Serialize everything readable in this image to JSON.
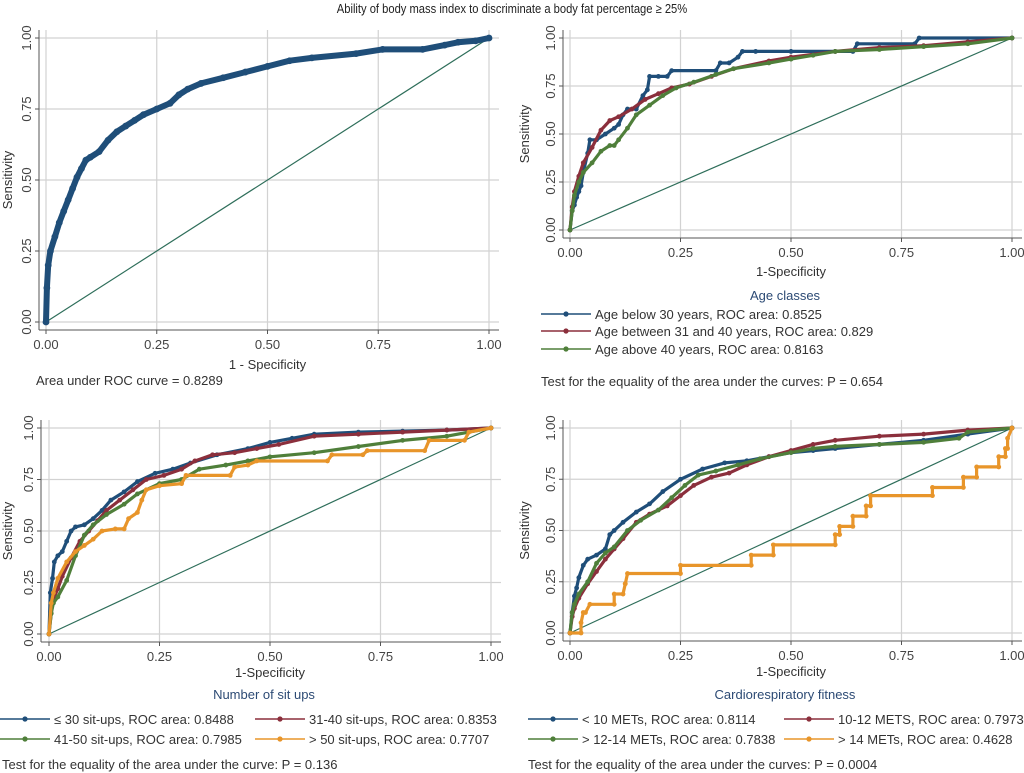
{
  "title": "Ability of body mass index to discriminate a body fat percentage ≥ 25%",
  "colors": {
    "navy": "#1f4e79",
    "maroon": "#8b2f3c",
    "green": "#4f7f3a",
    "orange": "#e8952a",
    "reference": "#2e6e5a",
    "grid": "#d2d2d2",
    "axis": "#555555"
  },
  "chart_data": [
    {
      "type": "line",
      "panel": "top-left",
      "title": "",
      "xlabel": "1 - Specificity",
      "ylabel": "Sensitivity",
      "xlim": [
        0,
        1
      ],
      "ylim": [
        0,
        1
      ],
      "xticks": [
        "0.00",
        "0.25",
        "0.50",
        "0.75",
        "1.00"
      ],
      "yticks": [
        "0.00",
        "0.25",
        "0.50",
        "0.75",
        "1.00"
      ],
      "grid": true,
      "note": "Area under ROC curve = 0.8289",
      "reference_line": true,
      "series": [
        {
          "name": "BMI",
          "color": "navy",
          "thick": true,
          "x": [
            0,
            0.002,
            0.005,
            0.01,
            0.02,
            0.03,
            0.04,
            0.05,
            0.06,
            0.07,
            0.08,
            0.09,
            0.1,
            0.12,
            0.14,
            0.16,
            0.18,
            0.2,
            0.22,
            0.25,
            0.28,
            0.3,
            0.32,
            0.35,
            0.4,
            0.45,
            0.5,
            0.55,
            0.6,
            0.7,
            0.76,
            0.85,
            0.9,
            0.93,
            0.97,
            1.0
          ],
          "y": [
            0,
            0.12,
            0.2,
            0.25,
            0.3,
            0.35,
            0.39,
            0.43,
            0.47,
            0.51,
            0.54,
            0.57,
            0.58,
            0.6,
            0.64,
            0.67,
            0.69,
            0.71,
            0.73,
            0.75,
            0.77,
            0.8,
            0.82,
            0.84,
            0.86,
            0.88,
            0.9,
            0.92,
            0.93,
            0.945,
            0.96,
            0.96,
            0.975,
            0.985,
            0.99,
            1.0
          ]
        }
      ]
    },
    {
      "type": "line",
      "panel": "top-right",
      "xlabel": "1-Specificity",
      "ylabel": "Sensitivity",
      "xlim": [
        0,
        1
      ],
      "ylim": [
        0,
        1
      ],
      "xticks": [
        "0.00",
        "0.25",
        "0.50",
        "0.75",
        "1.00"
      ],
      "yticks": [
        "0.00",
        "0.25",
        "0.50",
        "0.75",
        "1.00"
      ],
      "grid": true,
      "legend_title": "Age classes",
      "note": "Test for the equality of the area under the curves: P = 0.654",
      "reference_line": true,
      "series": [
        {
          "name": "Age below 30 years, ROC area: 0.8525",
          "color": "navy",
          "x": [
            0,
            0.005,
            0.01,
            0.015,
            0.02,
            0.025,
            0.03,
            0.04,
            0.045,
            0.06,
            0.08,
            0.1,
            0.11,
            0.12,
            0.13,
            0.15,
            0.165,
            0.175,
            0.18,
            0.2,
            0.22,
            0.23,
            0.33,
            0.34,
            0.36,
            0.38,
            0.39,
            0.42,
            0.5,
            0.6,
            0.64,
            0.65,
            0.78,
            0.79,
            1.0
          ],
          "y": [
            0,
            0.1,
            0.13,
            0.17,
            0.2,
            0.23,
            0.3,
            0.4,
            0.47,
            0.47,
            0.5,
            0.53,
            0.55,
            0.6,
            0.63,
            0.63,
            0.7,
            0.73,
            0.8,
            0.8,
            0.8,
            0.83,
            0.83,
            0.87,
            0.87,
            0.9,
            0.93,
            0.93,
            0.93,
            0.93,
            0.93,
            0.97,
            0.97,
            1.0,
            1.0
          ]
        },
        {
          "name": "Age between 31 and 40 years, ROC area: 0.829",
          "color": "maroon",
          "x": [
            0,
            0.005,
            0.01,
            0.02,
            0.03,
            0.05,
            0.07,
            0.09,
            0.11,
            0.14,
            0.17,
            0.2,
            0.23,
            0.27,
            0.32,
            0.37,
            0.45,
            0.5,
            0.6,
            0.7,
            0.8,
            0.9,
            1.0
          ],
          "y": [
            0,
            0.12,
            0.2,
            0.28,
            0.35,
            0.43,
            0.52,
            0.57,
            0.59,
            0.63,
            0.68,
            0.71,
            0.74,
            0.76,
            0.8,
            0.84,
            0.88,
            0.9,
            0.93,
            0.95,
            0.96,
            0.98,
            1.0
          ]
        },
        {
          "name": "Age above 40 years, ROC area: 0.8163",
          "color": "green",
          "x": [
            0,
            0.005,
            0.01,
            0.02,
            0.03,
            0.05,
            0.07,
            0.09,
            0.1,
            0.11,
            0.13,
            0.15,
            0.18,
            0.21,
            0.24,
            0.28,
            0.33,
            0.37,
            0.45,
            0.5,
            0.55,
            0.6,
            0.7,
            0.8,
            0.9,
            1.0
          ],
          "y": [
            0,
            0.1,
            0.18,
            0.25,
            0.3,
            0.35,
            0.41,
            0.44,
            0.44,
            0.47,
            0.53,
            0.6,
            0.65,
            0.7,
            0.74,
            0.77,
            0.81,
            0.84,
            0.87,
            0.89,
            0.91,
            0.93,
            0.94,
            0.955,
            0.97,
            1.0
          ]
        }
      ]
    },
    {
      "type": "line",
      "panel": "bottom-left",
      "xlabel": "1-Specificity",
      "ylabel": "Sensitivity",
      "xlim": [
        0,
        1
      ],
      "ylim": [
        0,
        1
      ],
      "xticks": [
        "0.00",
        "0.25",
        "0.50",
        "0.75",
        "1.00"
      ],
      "yticks": [
        "0.00",
        "0.25",
        "0.50",
        "0.75",
        "1.00"
      ],
      "grid": true,
      "legend_title": "Number of sit ups",
      "note": "Test for the equality of the area under the curve: P = 0.136",
      "reference_line": true,
      "series": [
        {
          "name": "≤ 30 sit-ups, ROC area: 0.8488",
          "color": "navy",
          "x": [
            0,
            0.003,
            0.008,
            0.012,
            0.02,
            0.03,
            0.04,
            0.05,
            0.06,
            0.08,
            0.1,
            0.12,
            0.14,
            0.17,
            0.2,
            0.24,
            0.28,
            0.32,
            0.38,
            0.45,
            0.5,
            0.55,
            0.6,
            0.7,
            0.8,
            0.9,
            1.0
          ],
          "y": [
            0,
            0.2,
            0.27,
            0.35,
            0.38,
            0.4,
            0.45,
            0.5,
            0.52,
            0.53,
            0.56,
            0.6,
            0.65,
            0.69,
            0.74,
            0.78,
            0.8,
            0.83,
            0.87,
            0.9,
            0.93,
            0.95,
            0.97,
            0.98,
            0.985,
            0.99,
            1.0
          ]
        },
        {
          "name": "31-40 sit-ups, ROC area: 0.8353",
          "color": "maroon",
          "x": [
            0,
            0.005,
            0.01,
            0.02,
            0.03,
            0.05,
            0.07,
            0.09,
            0.11,
            0.13,
            0.16,
            0.19,
            0.22,
            0.26,
            0.3,
            0.33,
            0.37,
            0.42,
            0.47,
            0.52,
            0.6,
            0.7,
            0.8,
            0.9,
            1.0
          ],
          "y": [
            0,
            0.1,
            0.17,
            0.22,
            0.28,
            0.37,
            0.45,
            0.5,
            0.55,
            0.6,
            0.65,
            0.7,
            0.75,
            0.77,
            0.8,
            0.84,
            0.87,
            0.88,
            0.9,
            0.92,
            0.96,
            0.97,
            0.98,
            0.99,
            1.0
          ]
        },
        {
          "name": "41-50 sit-ups, ROC area: 0.7985",
          "color": "green",
          "x": [
            0,
            0.005,
            0.01,
            0.02,
            0.04,
            0.06,
            0.08,
            0.1,
            0.13,
            0.17,
            0.2,
            0.25,
            0.3,
            0.34,
            0.4,
            0.45,
            0.5,
            0.6,
            0.7,
            0.8,
            0.9,
            1.0
          ],
          "y": [
            0,
            0.1,
            0.15,
            0.18,
            0.26,
            0.38,
            0.48,
            0.53,
            0.58,
            0.63,
            0.68,
            0.73,
            0.75,
            0.8,
            0.82,
            0.84,
            0.86,
            0.88,
            0.91,
            0.94,
            0.96,
            1.0
          ]
        },
        {
          "name": "> 50 sit-ups, ROC area: 0.7707",
          "color": "orange",
          "x": [
            0,
            0.005,
            0.01,
            0.02,
            0.04,
            0.06,
            0.08,
            0.1,
            0.12,
            0.15,
            0.17,
            0.18,
            0.2,
            0.21,
            0.22,
            0.25,
            0.3,
            0.31,
            0.41,
            0.42,
            0.45,
            0.47,
            0.63,
            0.64,
            0.71,
            0.72,
            0.85,
            0.86,
            0.94,
            0.95,
            1.0
          ],
          "y": [
            0,
            0.15,
            0.2,
            0.27,
            0.35,
            0.4,
            0.43,
            0.46,
            0.5,
            0.51,
            0.51,
            0.56,
            0.59,
            0.65,
            0.7,
            0.72,
            0.73,
            0.77,
            0.77,
            0.81,
            0.82,
            0.84,
            0.84,
            0.87,
            0.87,
            0.89,
            0.89,
            0.94,
            0.94,
            0.98,
            1.0
          ]
        }
      ]
    },
    {
      "type": "line",
      "panel": "bottom-right",
      "xlabel": "1-Specificity",
      "ylabel": "Sensitivity",
      "xlim": [
        0,
        1
      ],
      "ylim": [
        0,
        1
      ],
      "xticks": [
        "0.00",
        "0.25",
        "0.50",
        "0.75",
        "1.00"
      ],
      "yticks": [
        "0.00",
        "0.25",
        "0.50",
        "0.75",
        "1.00"
      ],
      "grid": true,
      "legend_title": "Cardiorespiratory fitness",
      "note": "Test for the equality of the area under the curves: P = 0.0004",
      "reference_line": true,
      "series": [
        {
          "name": "< 10 METs, ROC area: 0.8114",
          "color": "navy",
          "x": [
            0,
            0.005,
            0.01,
            0.015,
            0.02,
            0.03,
            0.04,
            0.06,
            0.08,
            0.09,
            0.1,
            0.12,
            0.15,
            0.18,
            0.21,
            0.25,
            0.3,
            0.35,
            0.4,
            0.45,
            0.5,
            0.55,
            0.6,
            0.7,
            0.8,
            0.9,
            1.0
          ],
          "y": [
            0,
            0.1,
            0.18,
            0.22,
            0.27,
            0.33,
            0.36,
            0.38,
            0.41,
            0.48,
            0.5,
            0.54,
            0.59,
            0.63,
            0.69,
            0.75,
            0.8,
            0.83,
            0.84,
            0.86,
            0.88,
            0.89,
            0.9,
            0.92,
            0.94,
            0.97,
            1.0
          ]
        },
        {
          "name": "10-12 METS, ROC area: 0.7973",
          "color": "maroon",
          "x": [
            0,
            0.005,
            0.01,
            0.02,
            0.04,
            0.06,
            0.08,
            0.1,
            0.12,
            0.15,
            0.18,
            0.22,
            0.25,
            0.28,
            0.32,
            0.36,
            0.4,
            0.45,
            0.5,
            0.55,
            0.6,
            0.7,
            0.8,
            0.9,
            1.0
          ],
          "y": [
            0,
            0.08,
            0.12,
            0.17,
            0.24,
            0.3,
            0.36,
            0.41,
            0.46,
            0.54,
            0.58,
            0.62,
            0.67,
            0.72,
            0.76,
            0.78,
            0.82,
            0.86,
            0.89,
            0.92,
            0.94,
            0.96,
            0.97,
            0.99,
            1.0
          ]
        },
        {
          "name": "> 12-14 METs, ROC area: 0.7838",
          "color": "green",
          "x": [
            0,
            0.005,
            0.01,
            0.02,
            0.04,
            0.06,
            0.08,
            0.1,
            0.13,
            0.16,
            0.2,
            0.23,
            0.26,
            0.29,
            0.33,
            0.38,
            0.43,
            0.5,
            0.55,
            0.6,
            0.7,
            0.8,
            0.88,
            0.9,
            1.0
          ],
          "y": [
            0,
            0.1,
            0.14,
            0.19,
            0.25,
            0.34,
            0.39,
            0.42,
            0.5,
            0.55,
            0.6,
            0.66,
            0.72,
            0.77,
            0.79,
            0.82,
            0.85,
            0.88,
            0.9,
            0.91,
            0.92,
            0.93,
            0.95,
            0.98,
            1.0
          ]
        },
        {
          "name": "> 14 METs, ROC area: 0.4628",
          "color": "orange",
          "x": [
            0,
            0.025,
            0.025,
            0.03,
            0.035,
            0.045,
            0.1,
            0.1,
            0.12,
            0.125,
            0.125,
            0.13,
            0.25,
            0.25,
            0.41,
            0.41,
            0.46,
            0.46,
            0.6,
            0.6,
            0.61,
            0.61,
            0.64,
            0.64,
            0.67,
            0.67,
            0.68,
            0.68,
            0.82,
            0.82,
            0.89,
            0.89,
            0.92,
            0.92,
            0.97,
            0.97,
            0.985,
            0.985,
            0.99,
            0.99,
            1.0
          ],
          "y": [
            0,
            0,
            0.05,
            0.1,
            0.1,
            0.14,
            0.14,
            0.19,
            0.19,
            0.24,
            0.24,
            0.29,
            0.29,
            0.33,
            0.33,
            0.38,
            0.38,
            0.43,
            0.43,
            0.48,
            0.48,
            0.52,
            0.52,
            0.57,
            0.57,
            0.62,
            0.62,
            0.67,
            0.67,
            0.71,
            0.71,
            0.76,
            0.76,
            0.81,
            0.81,
            0.86,
            0.86,
            0.9,
            0.9,
            0.95,
            1.0
          ]
        }
      ]
    }
  ]
}
